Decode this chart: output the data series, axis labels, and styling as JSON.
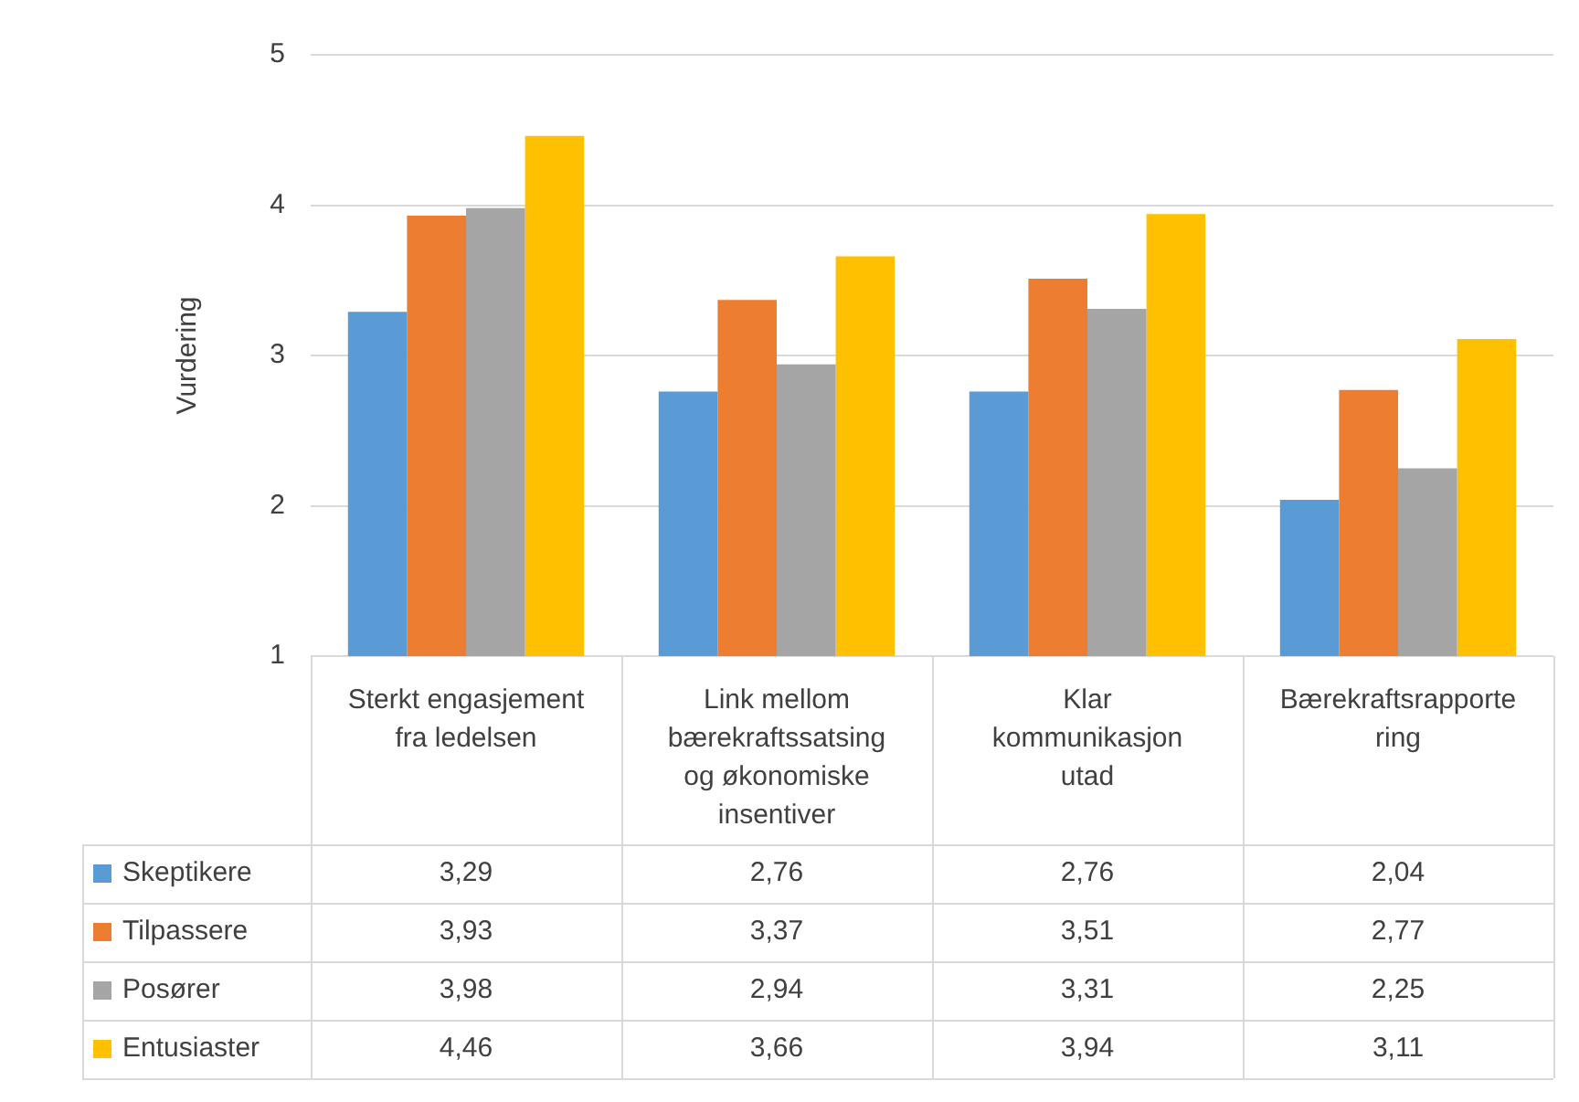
{
  "chart_data": {
    "type": "bar",
    "ylabel": "Vurdering",
    "categories": [
      "Sterkt engasjement fra ledelsen",
      "Link mellom bærekraftssatsing og økonomiske insentiver",
      "Klar kommunikasjon utad",
      "Bærekraftsrapportering"
    ],
    "series": [
      {
        "name": "Skeptikere",
        "color": "#5b9bd5",
        "values": [
          3.29,
          2.76,
          2.76,
          2.04
        ],
        "value_labels": [
          "3,29",
          "2,76",
          "2,76",
          "2,04"
        ]
      },
      {
        "name": "Tilpassere",
        "color": "#ed7d31",
        "values": [
          3.93,
          3.37,
          3.51,
          2.77
        ],
        "value_labels": [
          "3,93",
          "3,37",
          "3,51",
          "2,77"
        ]
      },
      {
        "name": "Posører",
        "color": "#a5a5a5",
        "values": [
          3.98,
          2.94,
          3.31,
          2.25
        ],
        "value_labels": [
          "3,98",
          "2,94",
          "3,31",
          "2,25"
        ]
      },
      {
        "name": "Entusiaster",
        "color": "#ffc000",
        "values": [
          4.46,
          3.66,
          3.94,
          3.11
        ],
        "value_labels": [
          "4,46",
          "3,66",
          "3,94",
          "3,11"
        ]
      }
    ],
    "ylim": [
      1,
      5
    ],
    "yticks": [
      1,
      2,
      3,
      4,
      5
    ],
    "grid": "y",
    "legend": "bottom"
  }
}
